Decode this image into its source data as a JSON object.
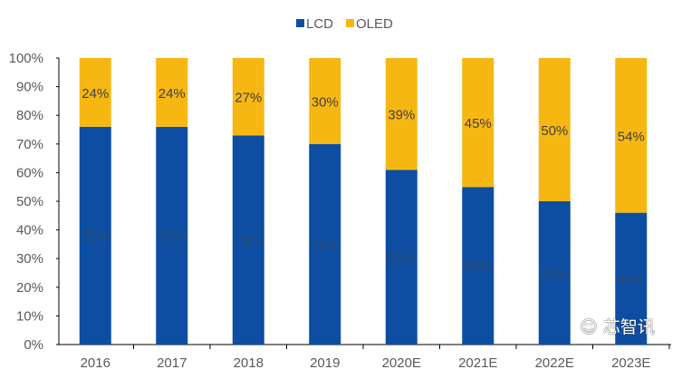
{
  "chart_data": {
    "type": "bar",
    "stacked": true,
    "categories": [
      "2016",
      "2017",
      "2018",
      "2019",
      "2020E",
      "2021E",
      "2022E",
      "2023E"
    ],
    "series": [
      {
        "name": "LCD",
        "values": [
          76,
          76,
          73,
          70,
          61,
          55,
          50,
          46
        ],
        "labels": [
          "76%",
          "76%",
          "73%",
          "70%",
          "61%",
          "55%",
          "50%",
          "46%"
        ],
        "color": "#0d4ea3"
      },
      {
        "name": "OLED",
        "values": [
          24,
          24,
          27,
          30,
          39,
          45,
          50,
          54
        ],
        "labels": [
          "24%",
          "24%",
          "27%",
          "30%",
          "39%",
          "45%",
          "50%",
          "54%"
        ],
        "color": "#f7b712"
      }
    ],
    "ylim": [
      0,
      100
    ],
    "yticks": [
      "0%",
      "10%",
      "20%",
      "30%",
      "40%",
      "50%",
      "60%",
      "70%",
      "80%",
      "90%",
      "100%"
    ],
    "grid": false,
    "legend": "top-center"
  },
  "watermark": {
    "text": "芯智讯",
    "icon": "wechat-icon"
  }
}
